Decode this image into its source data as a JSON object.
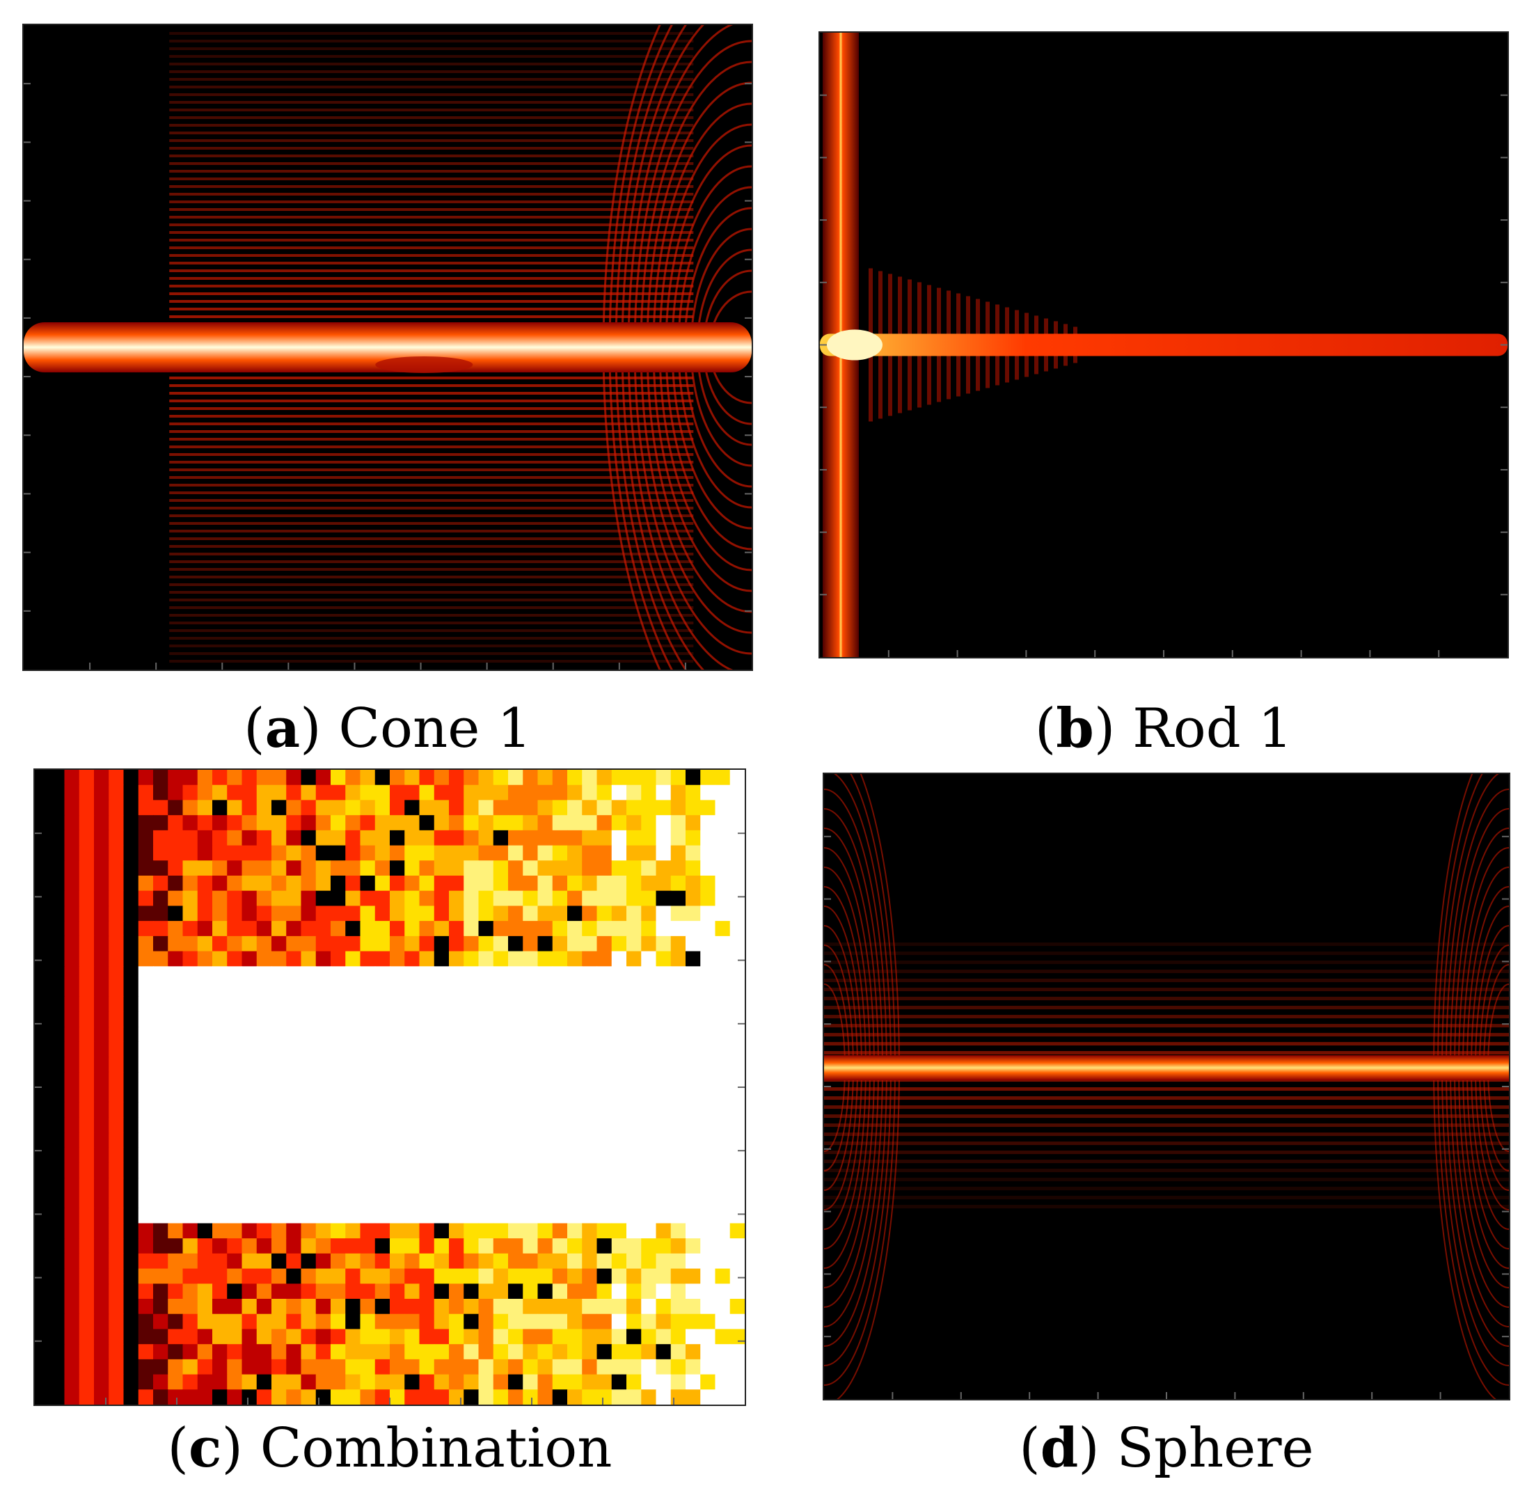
{
  "figure": {
    "panels": [
      {
        "key": "a",
        "letter": "a",
        "title": "Cone 1"
      },
      {
        "key": "b",
        "letter": "b",
        "title": "Rod 1"
      },
      {
        "key": "c",
        "letter": "c",
        "title": "Combination"
      },
      {
        "key": "d",
        "letter": "d",
        "title": "Sphere"
      }
    ]
  },
  "chart_data": [
    {
      "type": "heatmap",
      "panel": "a",
      "title": "Cone 1",
      "colormap": "hot",
      "xlabel": "",
      "ylabel": "",
      "grid": false
    },
    {
      "type": "heatmap",
      "panel": "b",
      "title": "Rod 1",
      "colormap": "hot",
      "xlabel": "",
      "ylabel": "",
      "grid": false
    },
    {
      "type": "heatmap",
      "panel": "c",
      "title": "Combination",
      "colormap": "hot",
      "xlabel": "",
      "ylabel": "",
      "grid": false
    },
    {
      "type": "heatmap",
      "panel": "d",
      "title": "Sphere",
      "colormap": "hot",
      "xlabel": "",
      "ylabel": "",
      "grid": false
    }
  ]
}
